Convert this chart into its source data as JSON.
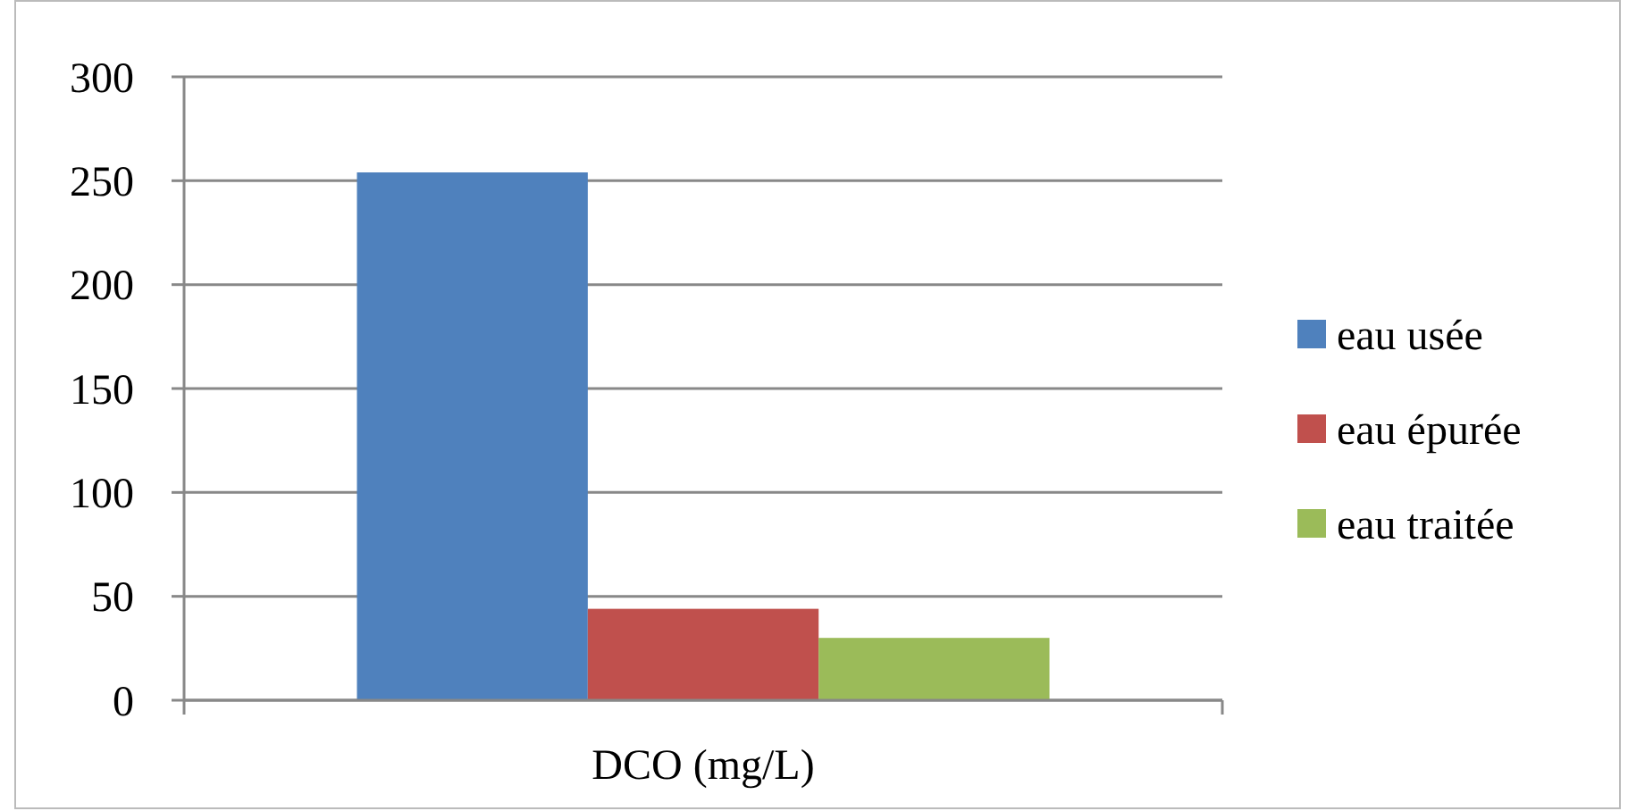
{
  "chart_data": {
    "type": "bar",
    "categories": [
      "DCO (mg/L)"
    ],
    "series": [
      {
        "name": "eau usée",
        "color": "#4f81bd",
        "values": [
          254
        ]
      },
      {
        "name": "eau épurée",
        "color": "#c0504d",
        "values": [
          44
        ]
      },
      {
        "name": "eau traitée",
        "color": "#9bbb59",
        "values": [
          30
        ]
      }
    ],
    "ylim": [
      0,
      300
    ],
    "yticks": [
      0,
      50,
      100,
      150,
      200,
      250,
      300
    ],
    "grid": "y",
    "legend": "right"
  }
}
